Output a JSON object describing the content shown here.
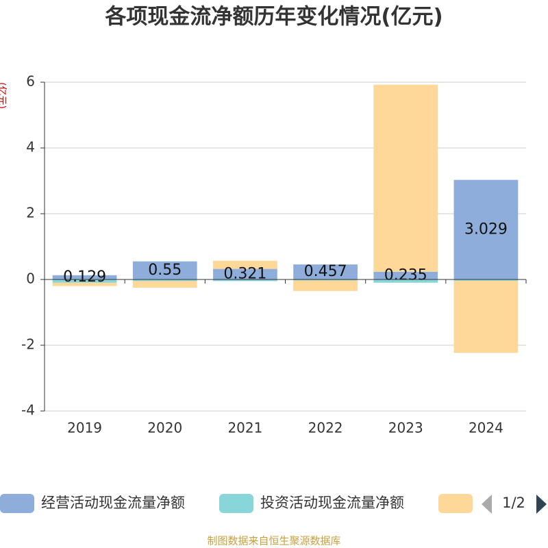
{
  "chart_data": {
    "type": "bar",
    "stacked": true,
    "title": "各项现金流净额历年变化情况(亿元)",
    "y_label": "(亿元)",
    "categories": [
      "2019",
      "2020",
      "2021",
      "2022",
      "2023",
      "2024"
    ],
    "series": [
      {
        "name": "经营活动现金流量净额",
        "color": "#8eaddb",
        "values": [
          0.129,
          0.55,
          0.321,
          0.457,
          0.235,
          3.029
        ],
        "show_labels": true
      },
      {
        "name": "投资活动现金流量净额",
        "color": "#88d6d9",
        "values": [
          -0.1,
          -0.05,
          -0.05,
          -0.03,
          -0.1,
          -0.04
        ]
      },
      {
        "color": "#fdd899",
        "values": [
          -0.1,
          -0.2,
          0.25,
          -0.32,
          5.69,
          -2.19
        ]
      }
    ],
    "ylim": [
      -4,
      6
    ],
    "yticks": [
      -4,
      -2,
      0,
      2,
      4,
      6
    ],
    "grid": true,
    "legend_position": "bottom",
    "legend_page": "1/2",
    "source": "制图数据来自恒生聚源数据库"
  }
}
